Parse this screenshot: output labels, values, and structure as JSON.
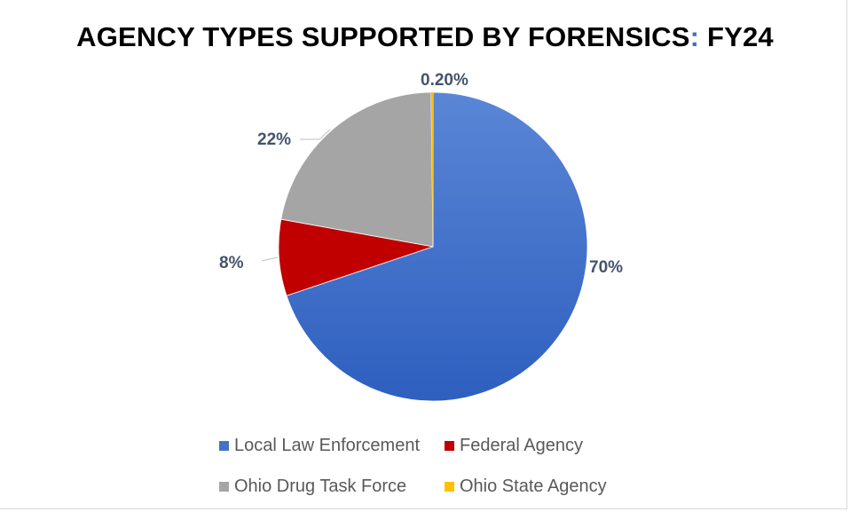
{
  "chart_data": {
    "type": "pie",
    "title": "AGENCY TYPES SUPPORTED BY FORENSICS: FY24",
    "title_parts": {
      "before_colon": "AGENCY TYPES SUPPORTED BY FORENSICS",
      "colon": ":",
      "after_colon": " FY24"
    },
    "legend_position": "bottom",
    "slices": [
      {
        "name": "Local Law Enforcement",
        "value": 70.0,
        "label": "70%",
        "color": "#4472c4"
      },
      {
        "name": "Federal Agency",
        "value": 8.0,
        "label": "8%",
        "color": "#c00000"
      },
      {
        "name": "Ohio Drug Task Force",
        "value": 22.0,
        "label": "22%",
        "color": "#a5a5a5"
      },
      {
        "name": "Ohio State Agency",
        "value": 0.2,
        "label": "0.20%",
        "color": "#ffc000"
      }
    ]
  }
}
